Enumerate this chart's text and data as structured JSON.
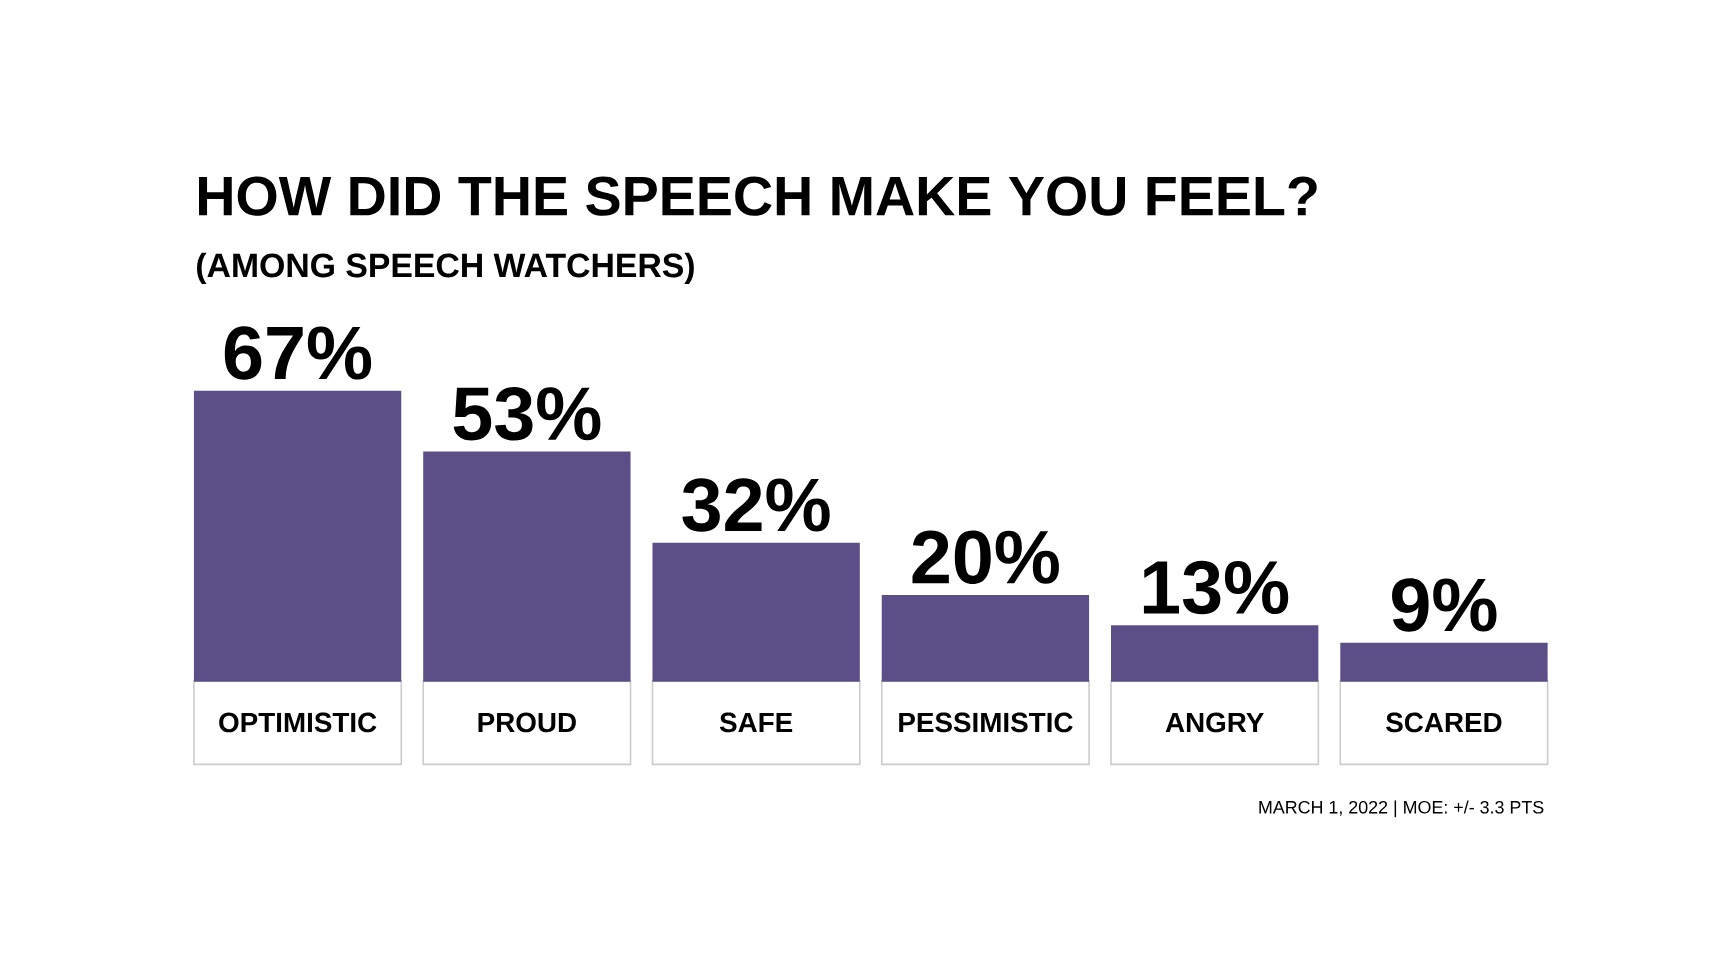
{
  "chart_data": {
    "type": "bar",
    "title": "HOW DID THE SPEECH MAKE YOU FEEL?",
    "subtitle": "(AMONG SPEECH WATCHERS)",
    "categories": [
      "OPTIMISTIC",
      "PROUD",
      "SAFE",
      "PESSIMISTIC",
      "ANGRY",
      "SCARED"
    ],
    "values": [
      67,
      53,
      32,
      20,
      13,
      9
    ],
    "value_labels": [
      "67%",
      "53%",
      "32%",
      "20%",
      "13%",
      "9%"
    ],
    "color": "#5c4f87",
    "annotations": [
      "MARCH 1, 2022  |  MOE: +/- 3.3 PTS"
    ]
  }
}
